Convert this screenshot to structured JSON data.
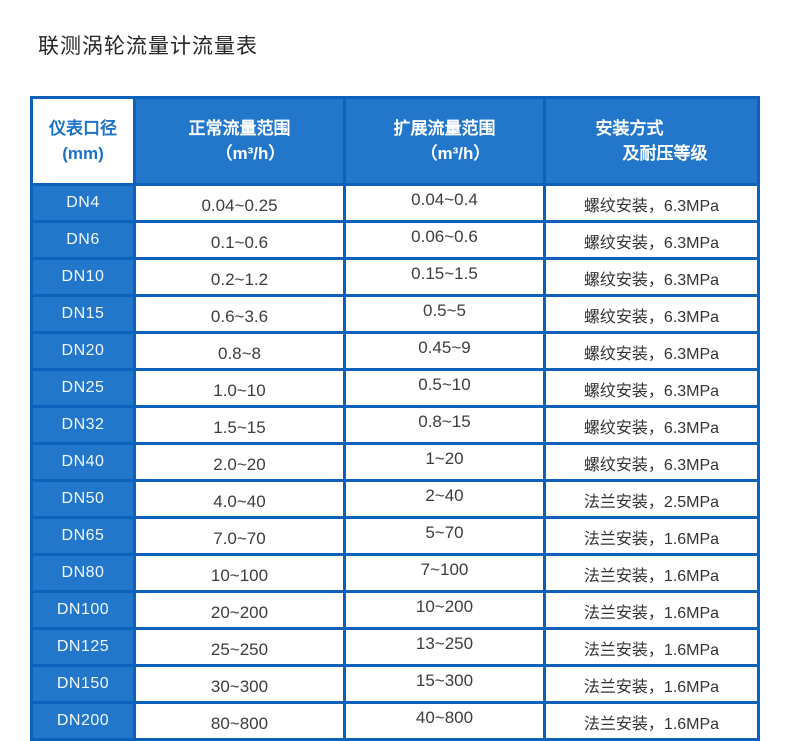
{
  "page_title": "联测涡轮流量计流量表",
  "colors": {
    "cell_blue": "#2277cb",
    "border_blue": "#0e61bb",
    "header_text_blue": "#1c72c4",
    "body_text": "#3d3d3d",
    "background": "#ffffff"
  },
  "table": {
    "header": {
      "col1_line1": "仪表口径",
      "col1_line2": "(mm)",
      "col2_line1": "正常流量范围",
      "col2_line2": "（m³/h）",
      "col3_line1": "扩展流量范围",
      "col3_line2": "（m³/h）",
      "col4_line1": "安装方式",
      "col4_line2": "及耐压等级"
    }
  },
  "chart_data": {
    "type": "table",
    "title": "联测涡轮流量计流量表",
    "columns": [
      "仪表口径(mm)",
      "正常流量范围（m³/h）",
      "扩展流量范围（m³/h）",
      "安装方式及耐压等级"
    ],
    "rows": [
      [
        "DN4",
        "0.04~0.25",
        "0.04~0.4",
        "螺纹安装，6.3MPa"
      ],
      [
        "DN6",
        "0.1~0.6",
        "0.06~0.6",
        "螺纹安装，6.3MPa"
      ],
      [
        "DN10",
        "0.2~1.2",
        "0.15~1.5",
        "螺纹安装，6.3MPa"
      ],
      [
        "DN15",
        "0.6~3.6",
        "0.5~5",
        "螺纹安装，6.3MPa"
      ],
      [
        "DN20",
        "0.8~8",
        "0.45~9",
        "螺纹安装，6.3MPa"
      ],
      [
        "DN25",
        "1.0~10",
        "0.5~10",
        "螺纹安装，6.3MPa"
      ],
      [
        "DN32",
        "1.5~15",
        "0.8~15",
        "螺纹安装，6.3MPa"
      ],
      [
        "DN40",
        "2.0~20",
        "1~20",
        "螺纹安装，6.3MPa"
      ],
      [
        "DN50",
        "4.0~40",
        "2~40",
        "法兰安装，2.5MPa"
      ],
      [
        "DN65",
        "7.0~70",
        "5~70",
        "法兰安装，1.6MPa"
      ],
      [
        "DN80",
        "10~100",
        "7~100",
        "法兰安装，1.6MPa"
      ],
      [
        "DN100",
        "20~200",
        "10~200",
        "法兰安装，1.6MPa"
      ],
      [
        "DN125",
        "25~250",
        "13~250",
        "法兰安装，1.6MPa"
      ],
      [
        "DN150",
        "30~300",
        "15~300",
        "法兰安装，1.6MPa"
      ],
      [
        "DN200",
        "80~800",
        "40~800",
        "法兰安装，1.6MPa"
      ]
    ]
  }
}
